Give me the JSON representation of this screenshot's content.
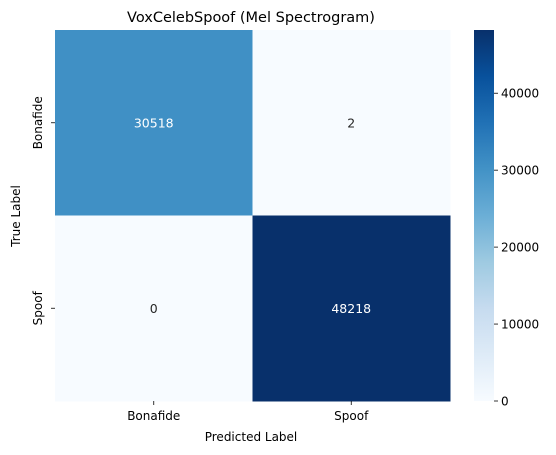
{
  "chart_data": {
    "type": "heatmap",
    "title": "VoxCelebSpoof (Mel Spectrogram)",
    "xlabel": "Predicted Label",
    "ylabel": "True Label",
    "x_categories": [
      "Bonafide",
      "Spoof"
    ],
    "y_categories": [
      "Bonafide",
      "Spoof"
    ],
    "values": [
      [
        30518,
        2
      ],
      [
        0,
        48218
      ]
    ],
    "colormap": "Blues",
    "colorbar": {
      "min": 0,
      "max": 48218,
      "ticks": [
        "0",
        "10000",
        "20000",
        "30000",
        "40000"
      ]
    },
    "grid": false,
    "legend": "colorbar-right"
  }
}
